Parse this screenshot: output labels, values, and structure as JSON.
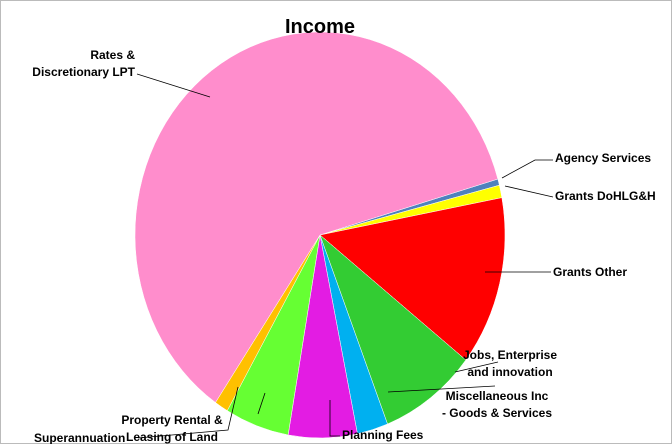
{
  "chart_data": {
    "type": "pie",
    "title": "Income",
    "categories": [
      "Agency Services",
      "Grants DoHLG&H",
      "Grants Other",
      "Jobs, Enterprise\nand innovation",
      "Miscellaneous Inc\n- Goods & Services",
      "Planning Fees",
      "Property Rental &\nLeasing of Land",
      "Superannuation",
      "Rates &\nDiscretionary LPT"
    ],
    "values": [
      0.5,
      1,
      13.5,
      8.5,
      2.7,
      6,
      5.6,
      1.2,
      61
    ],
    "colors": [
      "#4f81bd",
      "#ffff00",
      "#ff0000",
      "#33cc33",
      "#00b0f0",
      "#e31ce3",
      "#66ff33",
      "#ffc000",
      "#ff8dcc"
    ]
  }
}
